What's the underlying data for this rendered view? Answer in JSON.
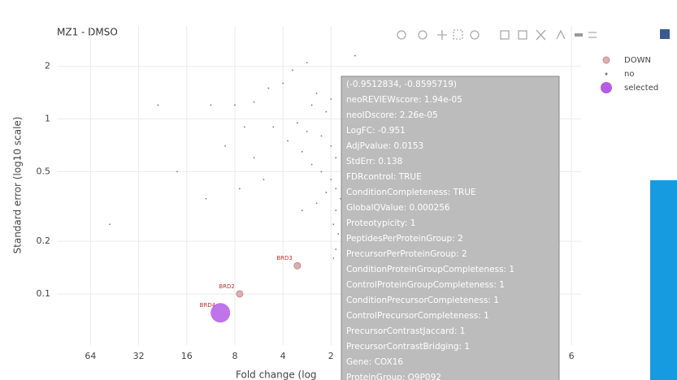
{
  "chart_data": {
    "type": "scatter",
    "title": "MZ1 - DMSO",
    "x_label": "Fold change (log",
    "y_label": "Standard error (log10 scale)",
    "log_y": true,
    "grid": true,
    "legend": "right",
    "xlim": [
      -6.7,
      4.2
    ],
    "ylim": [
      0.051,
      3.4
    ],
    "xticks": [
      {
        "value": -6,
        "label": "64"
      },
      {
        "value": -5,
        "label": "32"
      },
      {
        "value": -4,
        "label": "16"
      },
      {
        "value": -3,
        "label": "8"
      },
      {
        "value": -2,
        "label": "4"
      },
      {
        "value": -1,
        "label": "2"
      },
      {
        "value": 4,
        "label": "6"
      }
    ],
    "yticks": [
      0.1,
      0.2,
      0.5,
      1,
      2
    ],
    "series": [
      {
        "name": "DOWN",
        "color": "#c48a8a",
        "x": [
          -1.7,
          -2.9
        ],
        "y": [
          0.145,
          0.1
        ],
        "labels": [
          "BRD3",
          "BRD2"
        ]
      },
      {
        "name": "no",
        "color": "#777777",
        "x": [
          -3.5,
          -3.0,
          -2.6,
          -2.3,
          -2.0,
          -1.8,
          -1.5,
          -1.3,
          -1.1,
          -2.2,
          -1.9,
          -1.6,
          -1.4,
          -1.2,
          -1.0,
          -0.9,
          -2.6,
          -2.4,
          -1.7,
          -1.5,
          -1.2,
          -1.0,
          -0.9,
          -0.8,
          -0.9,
          -0.95,
          -0.85,
          -0.9,
          -0.95,
          -1.1,
          -1.3,
          -2.8,
          -3.2,
          -4.2,
          -4.6,
          -5.6,
          -0.7,
          -0.6,
          -0.5,
          -0.4,
          -1.0,
          -1.4,
          -2.9,
          -3.6,
          -1.6
        ],
        "y": [
          1.2,
          1.2,
          1.25,
          1.5,
          1.6,
          1.9,
          2.1,
          1.4,
          1.1,
          0.9,
          0.75,
          0.65,
          0.55,
          0.5,
          0.45,
          0.4,
          0.6,
          0.45,
          0.95,
          0.85,
          0.8,
          0.7,
          0.6,
          0.35,
          0.3,
          0.25,
          0.22,
          0.18,
          0.16,
          0.38,
          0.33,
          0.9,
          0.7,
          0.5,
          1.2,
          0.25,
          1.5,
          1.0,
          2.3,
          0.9,
          1.3,
          1.2,
          0.4,
          0.35,
          0.3
        ]
      },
      {
        "name": "selected",
        "color": "#b45ce6",
        "x": [
          -3.3
        ],
        "y": [
          0.078
        ],
        "labels": [
          "BRD4"
        ]
      }
    ],
    "tooltip": [
      "(-0.9512834, -0.8595719)",
      "neoREVIEWscore: 1.94e-05",
      "neoIDscore: 2.26e-05",
      "LogFC: -0.951",
      "AdjPvalue: 0.0153",
      "StdErr: 0.138",
      "FDRcontrol: TRUE",
      "ConditionCompleteness: TRUE",
      "GlobalQValue: 0.000256",
      "Proteotypicity: 1",
      "PeptidesPerProteinGroup: 2",
      "PrecursorPerProteinGroup: 2",
      "ConditionProteinGroupCompleteness: 1",
      "ControlProteinGroupCompleteness: 1",
      "ConditionPrecursorCompleteness: 1",
      "ControlPrecursorCompleteness: 1",
      "PrecursorContrastJaccard: 1",
      "PrecursorContrastBridging: 1",
      "Gene: COX16",
      "ProteinGroup: Q9P092"
    ]
  }
}
